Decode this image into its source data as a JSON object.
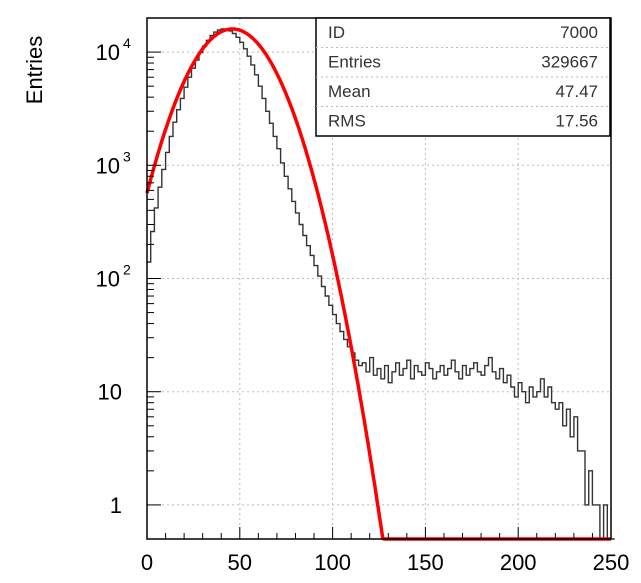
{
  "chart_data": {
    "type": "line",
    "ylabel": "Entries",
    "xlabel": "",
    "xlim": [
      0,
      250
    ],
    "ylim": [
      0.5,
      20000
    ],
    "y_scale": "log",
    "grid": true,
    "x_ticks": [
      {
        "value": 0,
        "label": "0"
      },
      {
        "value": 50,
        "label": "50"
      },
      {
        "value": 100,
        "label": "100"
      },
      {
        "value": 150,
        "label": "150"
      },
      {
        "value": 200,
        "label": "200"
      },
      {
        "value": 250,
        "label": "250"
      }
    ],
    "y_ticks": [
      {
        "value": 1,
        "base": "1",
        "exp": ""
      },
      {
        "value": 10,
        "base": "10",
        "exp": ""
      },
      {
        "value": 100,
        "base": "10",
        "exp": "2"
      },
      {
        "value": 1000,
        "base": "10",
        "exp": "3"
      },
      {
        "value": 10000,
        "base": "10",
        "exp": "4"
      }
    ],
    "stats_box": {
      "rows": [
        {
          "key": "ID",
          "value": "7000"
        },
        {
          "key": "Entries",
          "value": "329667"
        },
        {
          "key": "Mean",
          "value": "47.47"
        },
        {
          "key": "RMS",
          "value": "17.56"
        }
      ]
    },
    "series": [
      {
        "kind": "histogram",
        "color": "#333333",
        "bin_width": 2,
        "x_start": 0,
        "values": [
          140,
          260,
          420,
          640,
          920,
          1300,
          1800,
          2400,
          3100,
          3900,
          4900,
          6000,
          7200,
          8500,
          9900,
          11300,
          12700,
          14000,
          15000,
          15700,
          16000,
          15900,
          15400,
          14600,
          13500,
          12200,
          10700,
          9200,
          7700,
          6300,
          5000,
          3900,
          3000,
          2350,
          1800,
          1400,
          1050,
          800,
          620,
          480,
          380,
          300,
          240,
          195,
          160,
          130,
          105,
          85,
          70,
          58,
          48,
          40,
          34,
          29,
          25,
          22,
          19,
          17,
          18,
          15,
          20,
          14,
          16,
          13,
          17,
          12,
          15,
          18,
          14,
          16,
          19,
          13,
          17,
          15,
          14,
          18,
          16,
          13,
          15,
          17,
          14,
          16,
          19,
          15,
          13,
          17,
          14,
          16,
          18,
          15,
          14,
          17,
          20,
          15,
          13,
          16,
          12,
          14,
          11,
          9,
          12,
          10,
          8,
          11,
          9,
          10,
          13,
          9,
          11,
          8,
          7,
          8,
          5,
          7,
          4,
          6,
          3,
          3,
          1,
          2,
          1,
          1,
          0,
          1,
          0,
          0
        ]
      },
      {
        "kind": "fit",
        "color": "#ff0000",
        "function": "gaussian",
        "amplitude": 16000,
        "mean": 46,
        "sigma": 17.8
      }
    ]
  }
}
